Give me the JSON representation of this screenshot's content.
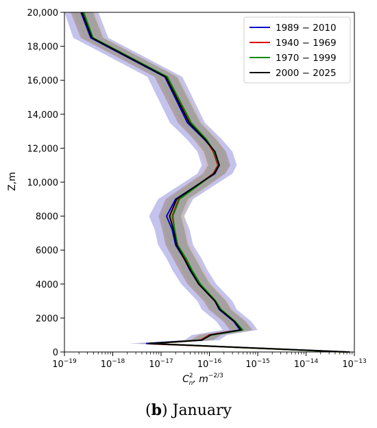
{
  "chart_data": {
    "type": "line",
    "xscale": "log",
    "xlim": [
      1e-19,
      1e-13
    ],
    "ylim": [
      0,
      20000
    ],
    "xlabel_main": "C",
    "xlabel_sup": "2",
    "xlabel_sub": "n",
    "xlabel_unit": ", m",
    "xlabel_unit_sup": "−2/3",
    "ylabel": "Z,m",
    "caption_bold": "b",
    "caption_text": " January",
    "x_ticks": [
      {
        "value": 1e-19,
        "base": "10",
        "exp": "−19"
      },
      {
        "value": 1e-18,
        "base": "10",
        "exp": "−18"
      },
      {
        "value": 1e-17,
        "base": "10",
        "exp": "−17"
      },
      {
        "value": 1e-16,
        "base": "10",
        "exp": "−16"
      },
      {
        "value": 1e-15,
        "base": "10",
        "exp": "−15"
      },
      {
        "value": 1e-14,
        "base": "10",
        "exp": "−14"
      },
      {
        "value": 1e-13,
        "base": "10",
        "exp": "−13"
      }
    ],
    "y_ticks": [
      {
        "value": 0,
        "label": "0"
      },
      {
        "value": 2000,
        "label": "2000"
      },
      {
        "value": 4000,
        "label": "4000"
      },
      {
        "value": 6000,
        "label": "6000"
      },
      {
        "value": 8000,
        "label": "8000"
      },
      {
        "value": 10000,
        "label": "10,000"
      },
      {
        "value": 12000,
        "label": "12,000"
      },
      {
        "value": 14000,
        "label": "14,000"
      },
      {
        "value": 16000,
        "label": "16,000"
      },
      {
        "value": 18000,
        "label": "18,000"
      },
      {
        "value": 20000,
        "label": "20,000"
      }
    ],
    "legend_position": "top-right",
    "series": [
      {
        "name": "1989 − 2010",
        "color": "#0000cc",
        "band_color": "#7b7bd6",
        "points": [
          [
            7e-14,
            0
          ],
          [
            5e-18,
            500
          ],
          [
            7e-17,
            700
          ],
          [
            1e-16,
            1000
          ],
          [
            4.3e-16,
            1300
          ],
          [
            3.2e-16,
            1800
          ],
          [
            1.6e-16,
            2500
          ],
          [
            1.3e-16,
            3000
          ],
          [
            6e-17,
            4000
          ],
          [
            4e-17,
            4800
          ],
          [
            3e-17,
            5500
          ],
          [
            2e-17,
            6300
          ],
          [
            1.7e-17,
            7200
          ],
          [
            1.3e-17,
            8000
          ],
          [
            2e-17,
            9000
          ],
          [
            1.3e-16,
            10500
          ],
          [
            1.6e-16,
            11000
          ],
          [
            1.3e-16,
            11800
          ],
          [
            8e-17,
            12500
          ],
          [
            3.5e-17,
            13500
          ],
          [
            1.2e-17,
            16200
          ],
          [
            3.5e-19,
            18500
          ],
          [
            2.2e-19,
            20000
          ]
        ]
      },
      {
        "name": "1940 − 1969",
        "color": "#dd0000",
        "band_color": "#d8b6a0",
        "points": [
          [
            6.5e-14,
            0
          ],
          [
            6e-18,
            480
          ],
          [
            6.5e-17,
            700
          ],
          [
            1e-16,
            1000
          ],
          [
            4.7e-16,
            1300
          ],
          [
            3.3e-16,
            1800
          ],
          [
            1.7e-16,
            2500
          ],
          [
            1.3e-16,
            3000
          ],
          [
            6.2e-17,
            4000
          ],
          [
            4.3e-17,
            4800
          ],
          [
            3.2e-17,
            5500
          ],
          [
            2.2e-17,
            6300
          ],
          [
            1.9e-17,
            7200
          ],
          [
            1.7e-17,
            8000
          ],
          [
            2.3e-17,
            9000
          ],
          [
            1.2e-16,
            10500
          ],
          [
            1.5e-16,
            11000
          ],
          [
            1.2e-16,
            11800
          ],
          [
            8.5e-17,
            12500
          ],
          [
            4e-17,
            13500
          ],
          [
            1.3e-17,
            16200
          ],
          [
            3.8e-19,
            18500
          ],
          [
            2.4e-19,
            20000
          ]
        ]
      },
      {
        "name": "1970 − 1999",
        "color": "#008800",
        "band_color": "#a8c4a0",
        "points": [
          [
            6e-14,
            0
          ],
          [
            6e-18,
            490
          ],
          [
            6.8e-17,
            700
          ],
          [
            1.1e-16,
            1000
          ],
          [
            4.9e-16,
            1300
          ],
          [
            3.4e-16,
            1800
          ],
          [
            1.75e-16,
            2500
          ],
          [
            1.35e-16,
            3000
          ],
          [
            6.5e-17,
            4000
          ],
          [
            4.4e-17,
            4800
          ],
          [
            3.3e-17,
            5500
          ],
          [
            2.2e-17,
            6300
          ],
          [
            1.9e-17,
            7200
          ],
          [
            1.75e-17,
            8000
          ],
          [
            2.4e-17,
            9000
          ],
          [
            1.25e-16,
            10500
          ],
          [
            1.55e-16,
            11000
          ],
          [
            1.25e-16,
            11800
          ],
          [
            8.8e-17,
            12500
          ],
          [
            4.2e-17,
            13500
          ],
          [
            1.35e-17,
            16200
          ],
          [
            3.9e-19,
            18500
          ],
          [
            2.5e-19,
            20000
          ]
        ]
      },
      {
        "name": "2000 − 2025",
        "color": "#000000",
        "band_color": "#8c7c88",
        "points": [
          [
            8e-14,
            0
          ],
          [
            5.5e-18,
            500
          ],
          [
            7e-17,
            700
          ],
          [
            1.05e-16,
            1000
          ],
          [
            4.5e-16,
            1300
          ],
          [
            3.3e-16,
            1800
          ],
          [
            1.65e-16,
            2500
          ],
          [
            1.3e-16,
            3000
          ],
          [
            6e-17,
            4000
          ],
          [
            4.1e-17,
            4800
          ],
          [
            3e-17,
            5500
          ],
          [
            2.1e-17,
            6300
          ],
          [
            1.8e-17,
            7200
          ],
          [
            1.5e-17,
            8000
          ],
          [
            2.1e-17,
            9000
          ],
          [
            1.25e-16,
            10500
          ],
          [
            1.6e-16,
            11000
          ],
          [
            1.3e-16,
            11800
          ],
          [
            8.2e-17,
            12500
          ],
          [
            3.8e-17,
            13500
          ],
          [
            1.25e-17,
            16200
          ],
          [
            3.7e-19,
            18500
          ],
          [
            2.3e-19,
            20000
          ]
        ]
      }
    ]
  }
}
